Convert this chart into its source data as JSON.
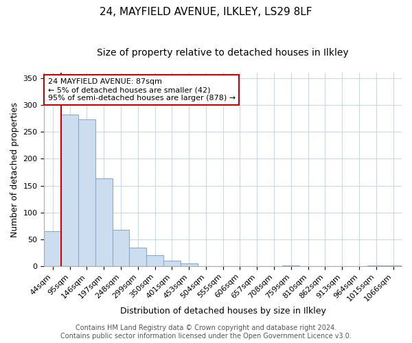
{
  "title": "24, MAYFIELD AVENUE, ILKLEY, LS29 8LF",
  "subtitle": "Size of property relative to detached houses in Ilkley",
  "xlabel": "Distribution of detached houses by size in Ilkley",
  "ylabel": "Number of detached properties",
  "bar_labels": [
    "44sqm",
    "95sqm",
    "146sqm",
    "197sqm",
    "248sqm",
    "299sqm",
    "350sqm",
    "401sqm",
    "453sqm",
    "504sqm",
    "555sqm",
    "606sqm",
    "657sqm",
    "708sqm",
    "759sqm",
    "810sqm",
    "862sqm",
    "913sqm",
    "964sqm",
    "1015sqm",
    "1066sqm"
  ],
  "bar_values": [
    65,
    282,
    273,
    163,
    68,
    35,
    20,
    10,
    5,
    0,
    0,
    0,
    0,
    0,
    1,
    0,
    0,
    0,
    0,
    1,
    1
  ],
  "red_bar_index": 0,
  "red_color": "#cc0000",
  "blue_fill": "#ccddf0",
  "blue_edge": "#88aacc",
  "annotation_title": "24 MAYFIELD AVENUE: 87sqm",
  "annotation_line1": "← 5% of detached houses are smaller (42)",
  "annotation_line2": "95% of semi-detached houses are larger (878) →",
  "ylim": [
    0,
    360
  ],
  "yticks": [
    0,
    50,
    100,
    150,
    200,
    250,
    300,
    350
  ],
  "footer_line1": "Contains HM Land Registry data © Crown copyright and database right 2024.",
  "footer_line2": "Contains public sector information licensed under the Open Government Licence v3.0.",
  "background_color": "#ffffff",
  "grid_color": "#c8d8e8",
  "title_fontsize": 11,
  "subtitle_fontsize": 10,
  "axis_label_fontsize": 9,
  "tick_fontsize": 8,
  "annotation_fontsize": 8,
  "footer_fontsize": 7
}
